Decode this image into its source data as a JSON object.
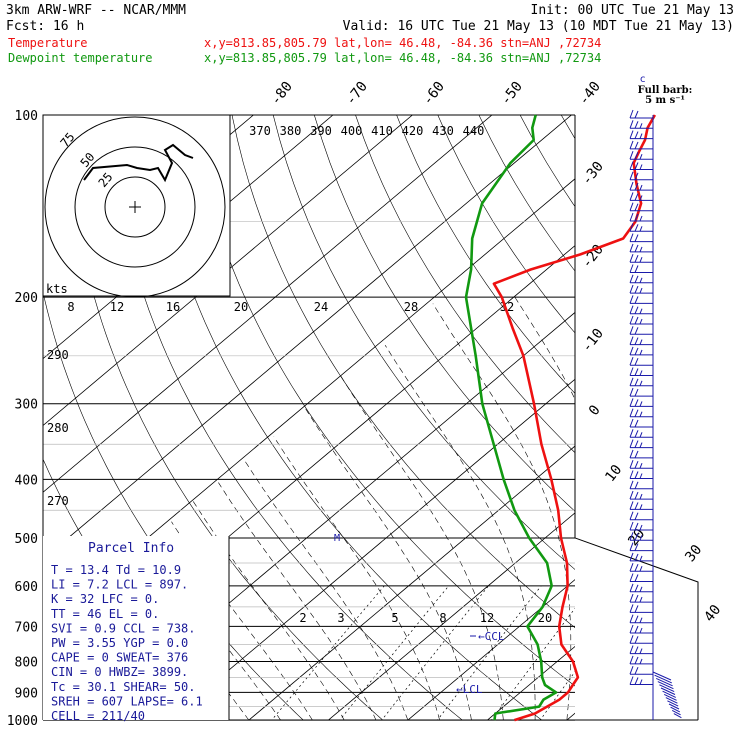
{
  "header": {
    "line1_left": "3km ARW-WRF -- NCAR/MMM",
    "line1_right": "Init: 00 UTC Tue 21 May 13",
    "line2_left": "Fcst:   16 h",
    "line2_right": "Valid: 16 UTC Tue 21 May 13 (10 MDT Tue 21 May 13)",
    "temp_legend": "Temperature",
    "temp_info": "x,y=813.85,805.79   lat,lon= 46.48, -84.36   stn=ANJ ,72734",
    "dew_legend": "Dewpoint temperature",
    "dew_info": "x,y=813.85,805.79   lat,lon= 46.48, -84.36   stn=ANJ ,72734",
    "barb_title": "Full barb:",
    "barb_unit": "5 m s⁻¹"
  },
  "colors": {
    "temperature": "#ee1111",
    "dewpoint": "#119911",
    "barbs": "#1a1aaa",
    "ccl": "#1a1aaa",
    "text_blue": "#1a1a99"
  },
  "parcel_info": {
    "title": "Parcel Info",
    "rows": [
      "T  =   13.4  Td =  10.9",
      "LI =    7.2  LCL =  897.",
      "K  =     32  LFC =    0.",
      "TT =     46  EL  =    0.",
      "SVI =   0.9  CCL =  738.",
      "PW =   3.55  YGP =   0.0",
      "CAPE =    0  SWEAT=  376",
      "CIN =     0  HWBZ= 3899.",
      "Tc =   30.1  SHEAR=  50.",
      "SREH =  607  LAPSE=  6.1",
      "CELL = 211/40"
    ]
  },
  "hodograph": {
    "ring_labels": [
      "25",
      "50",
      "75"
    ],
    "kts_label": "kts",
    "kts_ticks": [
      "8",
      "12",
      "16",
      "20",
      "24",
      "28",
      "32"
    ]
  },
  "chart_data": {
    "type": "line",
    "title": "",
    "yaxis_pressure_labels": [
      "100",
      "200",
      "300",
      "400",
      "500",
      "600",
      "700",
      "800",
      "900",
      "1000"
    ],
    "isotherm_labels": [
      "-80",
      "-70",
      "-60",
      "-50",
      "-40",
      "-30",
      "-20",
      "-10",
      "0",
      "10",
      "20",
      "30",
      "40"
    ],
    "theta_e_labels": [
      "370",
      "380",
      "390",
      "400",
      "410",
      "420",
      "430",
      "440"
    ],
    "dry_adiabat_labels": [
      "290",
      "280",
      "270"
    ],
    "mixing_ratio_labels": [
      "2",
      "3",
      "5",
      "8",
      "12",
      "20"
    ],
    "annotations": [
      "CCL",
      "LCL"
    ],
    "series": [
      {
        "name": "Temperature",
        "points": [
          [
            1000,
            13.4
          ],
          [
            975,
            15.0
          ],
          [
            950,
            15.5
          ],
          [
            925,
            16.0
          ],
          [
            900,
            16.0
          ],
          [
            875,
            15.5
          ],
          [
            850,
            15.0
          ],
          [
            800,
            12.0
          ],
          [
            750,
            8.0
          ],
          [
            700,
            5.0
          ],
          [
            650,
            2.5
          ],
          [
            600,
            0.0
          ],
          [
            550,
            -3.5
          ],
          [
            500,
            -8.0
          ],
          [
            450,
            -12.5
          ],
          [
            400,
            -18.0
          ],
          [
            350,
            -24.5
          ],
          [
            300,
            -31.5
          ],
          [
            250,
            -40.0
          ],
          [
            225,
            -45.5
          ],
          [
            200,
            -51.5
          ],
          [
            190,
            -54.5
          ],
          [
            180,
            -52.0
          ],
          [
            170,
            -48.0
          ],
          [
            160,
            -45.0
          ],
          [
            150,
            -46.0
          ],
          [
            140,
            -48.0
          ],
          [
            130,
            -51.5
          ],
          [
            120,
            -55.0
          ],
          [
            115,
            -56.0
          ],
          [
            110,
            -57.0
          ],
          [
            105,
            -58.5
          ],
          [
            100,
            -59.5
          ]
        ]
      },
      {
        "name": "Dewpoint temperature",
        "points": [
          [
            1000,
            10.9
          ],
          [
            975,
            10.0
          ],
          [
            950,
            14.5
          ],
          [
            925,
            14.0
          ],
          [
            900,
            14.5
          ],
          [
            875,
            12.0
          ],
          [
            850,
            10.5
          ],
          [
            800,
            8.0
          ],
          [
            750,
            5.0
          ],
          [
            700,
            1.0
          ],
          [
            650,
            0.0
          ],
          [
            600,
            -2.0
          ],
          [
            550,
            -6.0
          ],
          [
            500,
            -12.0
          ],
          [
            450,
            -18.0
          ],
          [
            400,
            -24.0
          ],
          [
            350,
            -30.5
          ],
          [
            300,
            -38.0
          ],
          [
            250,
            -46.0
          ],
          [
            200,
            -56.0
          ],
          [
            180,
            -59.5
          ],
          [
            160,
            -64.0
          ],
          [
            140,
            -68.0
          ],
          [
            120,
            -70.5
          ],
          [
            110,
            -71.0
          ],
          [
            105,
            -73.0
          ],
          [
            100,
            -74.5
          ]
        ]
      }
    ]
  }
}
